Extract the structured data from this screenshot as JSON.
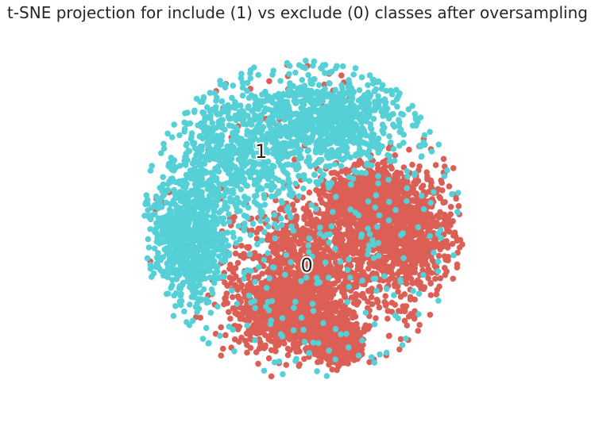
{
  "title": "t-SNE projection for include (1) vs exclude (0) classes after oversampling",
  "colors": {
    "class_0": "#dc5f56",
    "class_1": "#55d0d6",
    "background": "#ffffff"
  },
  "chart_data": {
    "type": "scatter",
    "title": "t-SNE projection for include (1) vs exclude (0) classes after oversampling",
    "xlabel": "",
    "ylabel": "",
    "axes_visible": false,
    "grid": false,
    "legend": "none",
    "xlim": [
      -100,
      100
    ],
    "ylim": [
      -100,
      100
    ],
    "series": [
      {
        "name": "0",
        "color": "#dc5f56",
        "region_description": "dense mass in lower-right half of disc",
        "blobs": [
          {
            "cx": 5,
            "cy": -28,
            "rx": 48,
            "ry": 40
          },
          {
            "cx": 60,
            "cy": -8,
            "rx": 32,
            "ry": 40
          },
          {
            "cx": -12,
            "cy": -55,
            "rx": 30,
            "ry": 22
          },
          {
            "cx": 40,
            "cy": 12,
            "rx": 26,
            "ry": 18
          },
          {
            "cx": 20,
            "cy": -75,
            "rx": 14,
            "ry": 10
          }
        ]
      },
      {
        "name": "1",
        "color": "#55d0d6",
        "region_description": "points spread over upper-left of disc and scattered elsewhere",
        "blobs": [
          {
            "cx": -40,
            "cy": 40,
            "rx": 48,
            "ry": 42
          },
          {
            "cx": 15,
            "cy": 62,
            "rx": 42,
            "ry": 28
          },
          {
            "cx": -70,
            "cy": -10,
            "rx": 22,
            "ry": 38
          }
        ]
      }
    ],
    "annotations": [
      {
        "text": "1",
        "x": -26,
        "y": 42
      },
      {
        "text": "0",
        "x": 2,
        "y": -28
      }
    ],
    "disc": {
      "cx": 0,
      "cy": 0,
      "r": 100
    }
  }
}
